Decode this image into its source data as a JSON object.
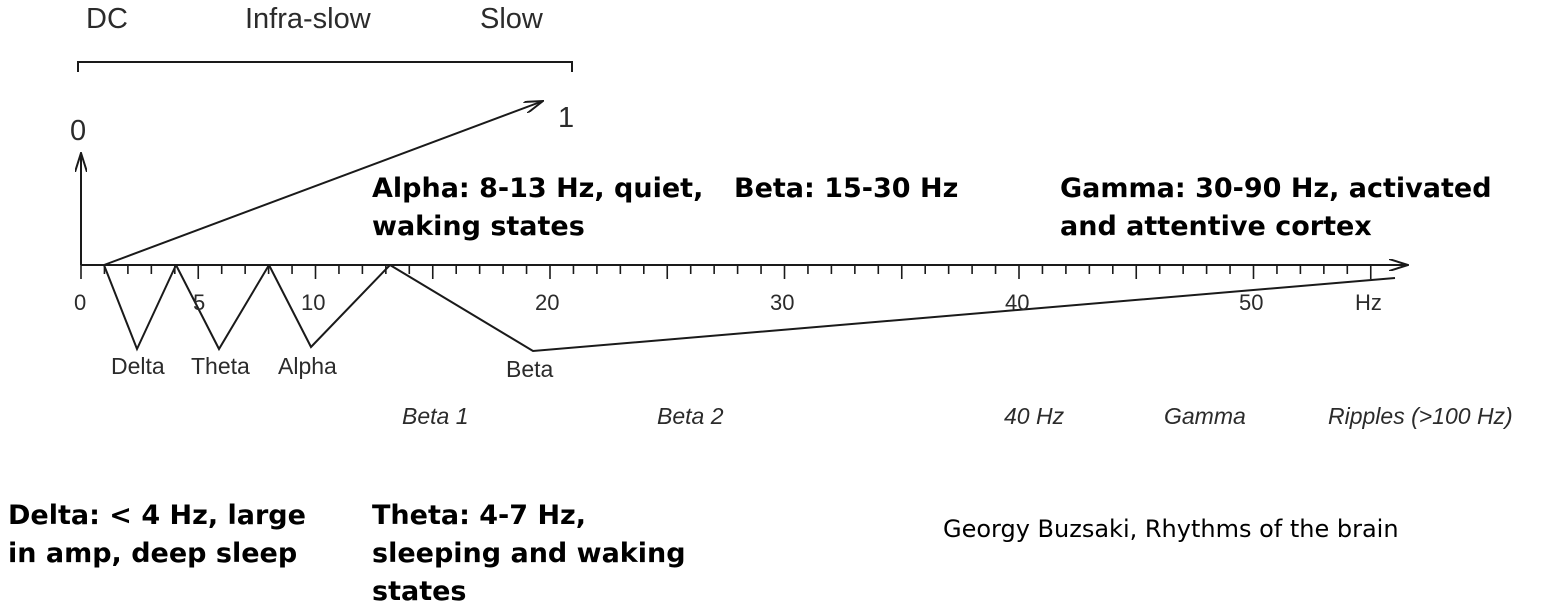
{
  "top_scale": {
    "labels": [
      "DC",
      "Infra-slow",
      "Slow"
    ],
    "start_value": "0",
    "end_value": "1"
  },
  "frequency_axis": {
    "unit": "Hz",
    "ticks": [
      "0",
      "5",
      "10",
      "20",
      "30",
      "40",
      "50"
    ]
  },
  "bands": [
    "Delta",
    "Theta",
    "Alpha",
    "Beta"
  ],
  "subbands": [
    "Beta 1",
    "Beta 2",
    "40 Hz",
    "Gamma",
    "Ripples (>100 Hz)"
  ],
  "notes": {
    "alpha": "Alpha: 8-13 Hz, quiet, waking states",
    "beta": "Beta: 15-30 Hz",
    "gamma": "Gamma: 30-90 Hz, activated and attentive cortex",
    "delta": "Delta: < 4 Hz, large in amp, deep sleep",
    "theta": "Theta: 4-7 Hz, sleeping and waking states"
  },
  "citation": "Georgy Buzsaki, Rhythms of the brain"
}
